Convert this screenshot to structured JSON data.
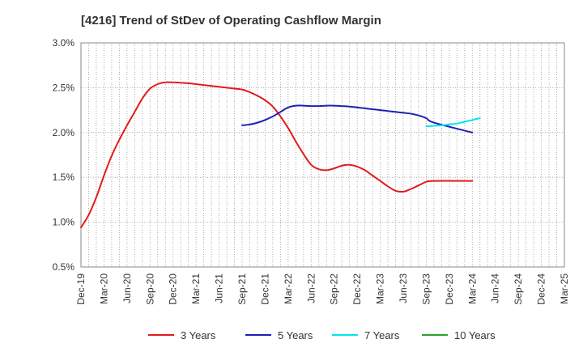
{
  "chart_data": {
    "type": "line",
    "title": "[4216]  Trend of StDev of Operating Cashflow Margin",
    "xlabel": "",
    "ylabel": "",
    "x_ticks": [
      "Dec-19",
      "Mar-20",
      "Jun-20",
      "Sep-20",
      "Dec-20",
      "Mar-21",
      "Jun-21",
      "Sep-21",
      "Dec-21",
      "Mar-22",
      "Jun-22",
      "Sep-22",
      "Dec-22",
      "Mar-23",
      "Jun-23",
      "Sep-23",
      "Dec-23",
      "Mar-24",
      "Jun-24",
      "Sep-24",
      "Dec-24",
      "Mar-25"
    ],
    "y_ticks": [
      "0.5%",
      "1.0%",
      "1.5%",
      "2.0%",
      "2.5%",
      "3.0%"
    ],
    "ylim": [
      0.5,
      3.0
    ],
    "grid": true,
    "legend_position": "bottom",
    "series": [
      {
        "name": "3 Years",
        "color": "#e31a1c",
        "points": [
          [
            "Dec-19",
            0.94
          ],
          [
            "Jan-20",
            1.08
          ],
          [
            "Feb-20",
            1.28
          ],
          [
            "Mar-20",
            1.52
          ],
          [
            "Apr-20",
            1.74
          ],
          [
            "May-20",
            1.92
          ],
          [
            "Jun-20",
            2.08
          ],
          [
            "Jul-20",
            2.23
          ],
          [
            "Aug-20",
            2.38
          ],
          [
            "Sep-20",
            2.49
          ],
          [
            "Oct-20",
            2.54
          ],
          [
            "Nov-20",
            2.56
          ],
          [
            "Dec-20",
            2.56
          ],
          [
            "Jan-21",
            2.555
          ],
          [
            "Feb-21",
            2.55
          ],
          [
            "Mar-21",
            2.54
          ],
          [
            "Apr-21",
            2.53
          ],
          [
            "May-21",
            2.52
          ],
          [
            "Jun-21",
            2.51
          ],
          [
            "Jul-21",
            2.5
          ],
          [
            "Aug-21",
            2.49
          ],
          [
            "Sep-21",
            2.48
          ],
          [
            "Oct-21",
            2.45
          ],
          [
            "Nov-21",
            2.41
          ],
          [
            "Dec-21",
            2.36
          ],
          [
            "Jan-22",
            2.29
          ],
          [
            "Feb-22",
            2.18
          ],
          [
            "Mar-22",
            2.05
          ],
          [
            "Apr-22",
            1.9
          ],
          [
            "May-22",
            1.76
          ],
          [
            "Jun-22",
            1.64
          ],
          [
            "Jul-22",
            1.59
          ],
          [
            "Aug-22",
            1.58
          ],
          [
            "Sep-22",
            1.6
          ],
          [
            "Oct-22",
            1.63
          ],
          [
            "Nov-22",
            1.64
          ],
          [
            "Dec-22",
            1.62
          ],
          [
            "Jan-23",
            1.58
          ],
          [
            "Feb-23",
            1.52
          ],
          [
            "Mar-23",
            1.46
          ],
          [
            "Apr-23",
            1.4
          ],
          [
            "May-23",
            1.35
          ],
          [
            "Jun-23",
            1.34
          ],
          [
            "Jul-23",
            1.37
          ],
          [
            "Aug-23",
            1.41
          ],
          [
            "Sep-23",
            1.45
          ],
          [
            "Oct-23",
            1.46
          ],
          [
            "Mar-24",
            1.46
          ]
        ]
      },
      {
        "name": "5 Years",
        "color": "#1f1fb4",
        "points": [
          [
            "Sep-21",
            2.08
          ],
          [
            "Oct-21",
            2.09
          ],
          [
            "Nov-21",
            2.11
          ],
          [
            "Dec-21",
            2.14
          ],
          [
            "Jan-22",
            2.18
          ],
          [
            "Feb-22",
            2.23
          ],
          [
            "Mar-22",
            2.28
          ],
          [
            "Apr-22",
            2.3
          ],
          [
            "May-22",
            2.3
          ],
          [
            "Jun-22",
            2.295
          ],
          [
            "Jul-22",
            2.295
          ],
          [
            "Aug-22",
            2.3
          ],
          [
            "Sep-22",
            2.3
          ],
          [
            "Oct-22",
            2.295
          ],
          [
            "Nov-22",
            2.29
          ],
          [
            "Dec-22",
            2.28
          ],
          [
            "Jan-23",
            2.27
          ],
          [
            "Feb-23",
            2.26
          ],
          [
            "Mar-23",
            2.25
          ],
          [
            "Apr-23",
            2.24
          ],
          [
            "May-23",
            2.23
          ],
          [
            "Jun-23",
            2.22
          ],
          [
            "Jul-23",
            2.21
          ],
          [
            "Aug-23",
            2.19
          ],
          [
            "Sep-23",
            2.16
          ],
          [
            "Oct-23",
            2.11
          ],
          [
            "Mar-24",
            2.0
          ]
        ]
      },
      {
        "name": "7 Years",
        "color": "#00e5ee",
        "points": [
          [
            "Sep-23",
            2.07
          ],
          [
            "Oct-23",
            2.075
          ],
          [
            "Nov-23",
            2.08
          ],
          [
            "Dec-23",
            2.09
          ],
          [
            "Jan-24",
            2.1
          ],
          [
            "Feb-24",
            2.12
          ],
          [
            "Mar-24",
            2.14
          ],
          [
            "Apr-24",
            2.16
          ]
        ]
      },
      {
        "name": "10 Years",
        "color": "#2ca02c",
        "points": []
      }
    ]
  }
}
